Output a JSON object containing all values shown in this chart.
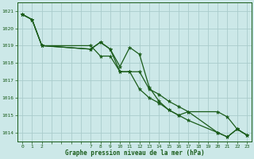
{
  "bg_color": "#cce8e8",
  "grid_color": "#aacccc",
  "line_color": "#1a5c1a",
  "marker_color": "#1a5c1a",
  "xlabel": "Graphe pression niveau de la mer (hPa)",
  "xlabel_color": "#1a5c1a",
  "tick_color": "#1a5c1a",
  "ylim": [
    1013.5,
    1021.5
  ],
  "xlim": [
    -0.5,
    23.5
  ],
  "yticks": [
    1014,
    1015,
    1016,
    1017,
    1018,
    1019,
    1020,
    1021
  ],
  "xtick_positions": [
    0,
    1,
    2,
    7,
    8,
    9,
    10,
    11,
    12,
    13,
    14,
    15,
    16,
    17,
    18,
    19,
    20,
    21,
    22,
    23
  ],
  "series": [
    {
      "x": [
        0,
        1,
        2,
        7,
        8,
        9,
        10,
        11,
        12,
        13,
        14,
        15,
        16,
        17,
        20,
        21,
        22,
        23
      ],
      "y": [
        1020.8,
        1020.5,
        1019.0,
        1019.0,
        1018.4,
        1018.4,
        1017.5,
        1017.5,
        1017.5,
        1016.5,
        1016.2,
        1015.8,
        1015.5,
        1015.2,
        1014.0,
        1013.75,
        1014.2,
        1013.85
      ]
    },
    {
      "x": [
        0,
        1,
        2,
        7,
        8,
        9,
        10,
        11,
        12,
        13,
        14,
        15,
        16,
        17,
        20,
        21,
        22,
        23
      ],
      "y": [
        1020.8,
        1020.5,
        1019.0,
        1018.8,
        1019.2,
        1018.8,
        1017.8,
        1018.9,
        1018.5,
        1016.6,
        1015.8,
        1015.3,
        1015.0,
        1015.2,
        1015.2,
        1014.9,
        1014.2,
        1013.85
      ]
    },
    {
      "x": [
        0,
        1,
        2,
        7,
        8,
        9,
        10,
        11,
        12,
        13,
        14,
        15,
        16,
        17,
        20,
        21,
        22,
        23
      ],
      "y": [
        1020.8,
        1020.5,
        1019.0,
        1018.8,
        1019.2,
        1018.8,
        1017.5,
        1017.5,
        1016.5,
        1016.0,
        1015.7,
        1015.3,
        1015.0,
        1014.7,
        1014.0,
        1013.75,
        1014.2,
        1013.85
      ]
    }
  ]
}
